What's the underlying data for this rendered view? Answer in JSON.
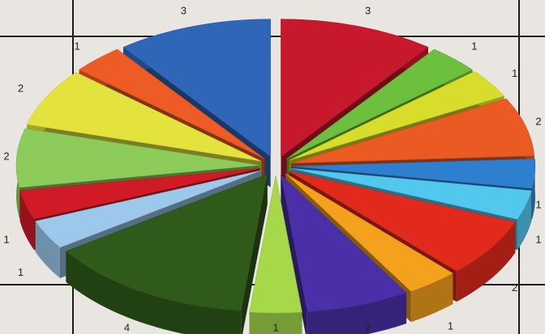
{
  "chart_data": {
    "type": "pie",
    "style": "3d-exploded",
    "title": "",
    "legend": "none",
    "grid": "none",
    "slices": [
      {
        "value": 3,
        "label": "3",
        "color": "#c8182b"
      },
      {
        "value": 1,
        "label": "1",
        "color": "#6dbf3e"
      },
      {
        "value": 1,
        "label": "1",
        "color": "#d8dc2a"
      },
      {
        "value": 2,
        "label": "2",
        "color": "#ea5a22"
      },
      {
        "value": 1,
        "label": "1",
        "color": "#2f7fd0"
      },
      {
        "value": 1,
        "label": "1",
        "color": "#53c8ee"
      },
      {
        "value": 2,
        "label": "2",
        "color": "#e22a1c"
      },
      {
        "value": 1,
        "label": "1",
        "color": "#f4a11d"
      },
      {
        "value": 2,
        "label": "2",
        "color": "#4a2fa8"
      },
      {
        "value": 1,
        "label": "1",
        "color": "#a6d84a"
      },
      {
        "value": 4,
        "label": "4",
        "color": "#2f5a1a"
      },
      {
        "value": 1,
        "label": "1",
        "color": "#9cc8ec"
      },
      {
        "value": 1,
        "label": "1",
        "color": "#d01a25"
      },
      {
        "value": 2,
        "label": "2",
        "color": "#8dcc5a"
      },
      {
        "value": 2,
        "label": "2",
        "color": "#e4e33e"
      },
      {
        "value": 1,
        "label": "1",
        "color": "#ef5b24"
      },
      {
        "value": 3,
        "label": "3",
        "color": "#2f66b8"
      }
    ]
  }
}
